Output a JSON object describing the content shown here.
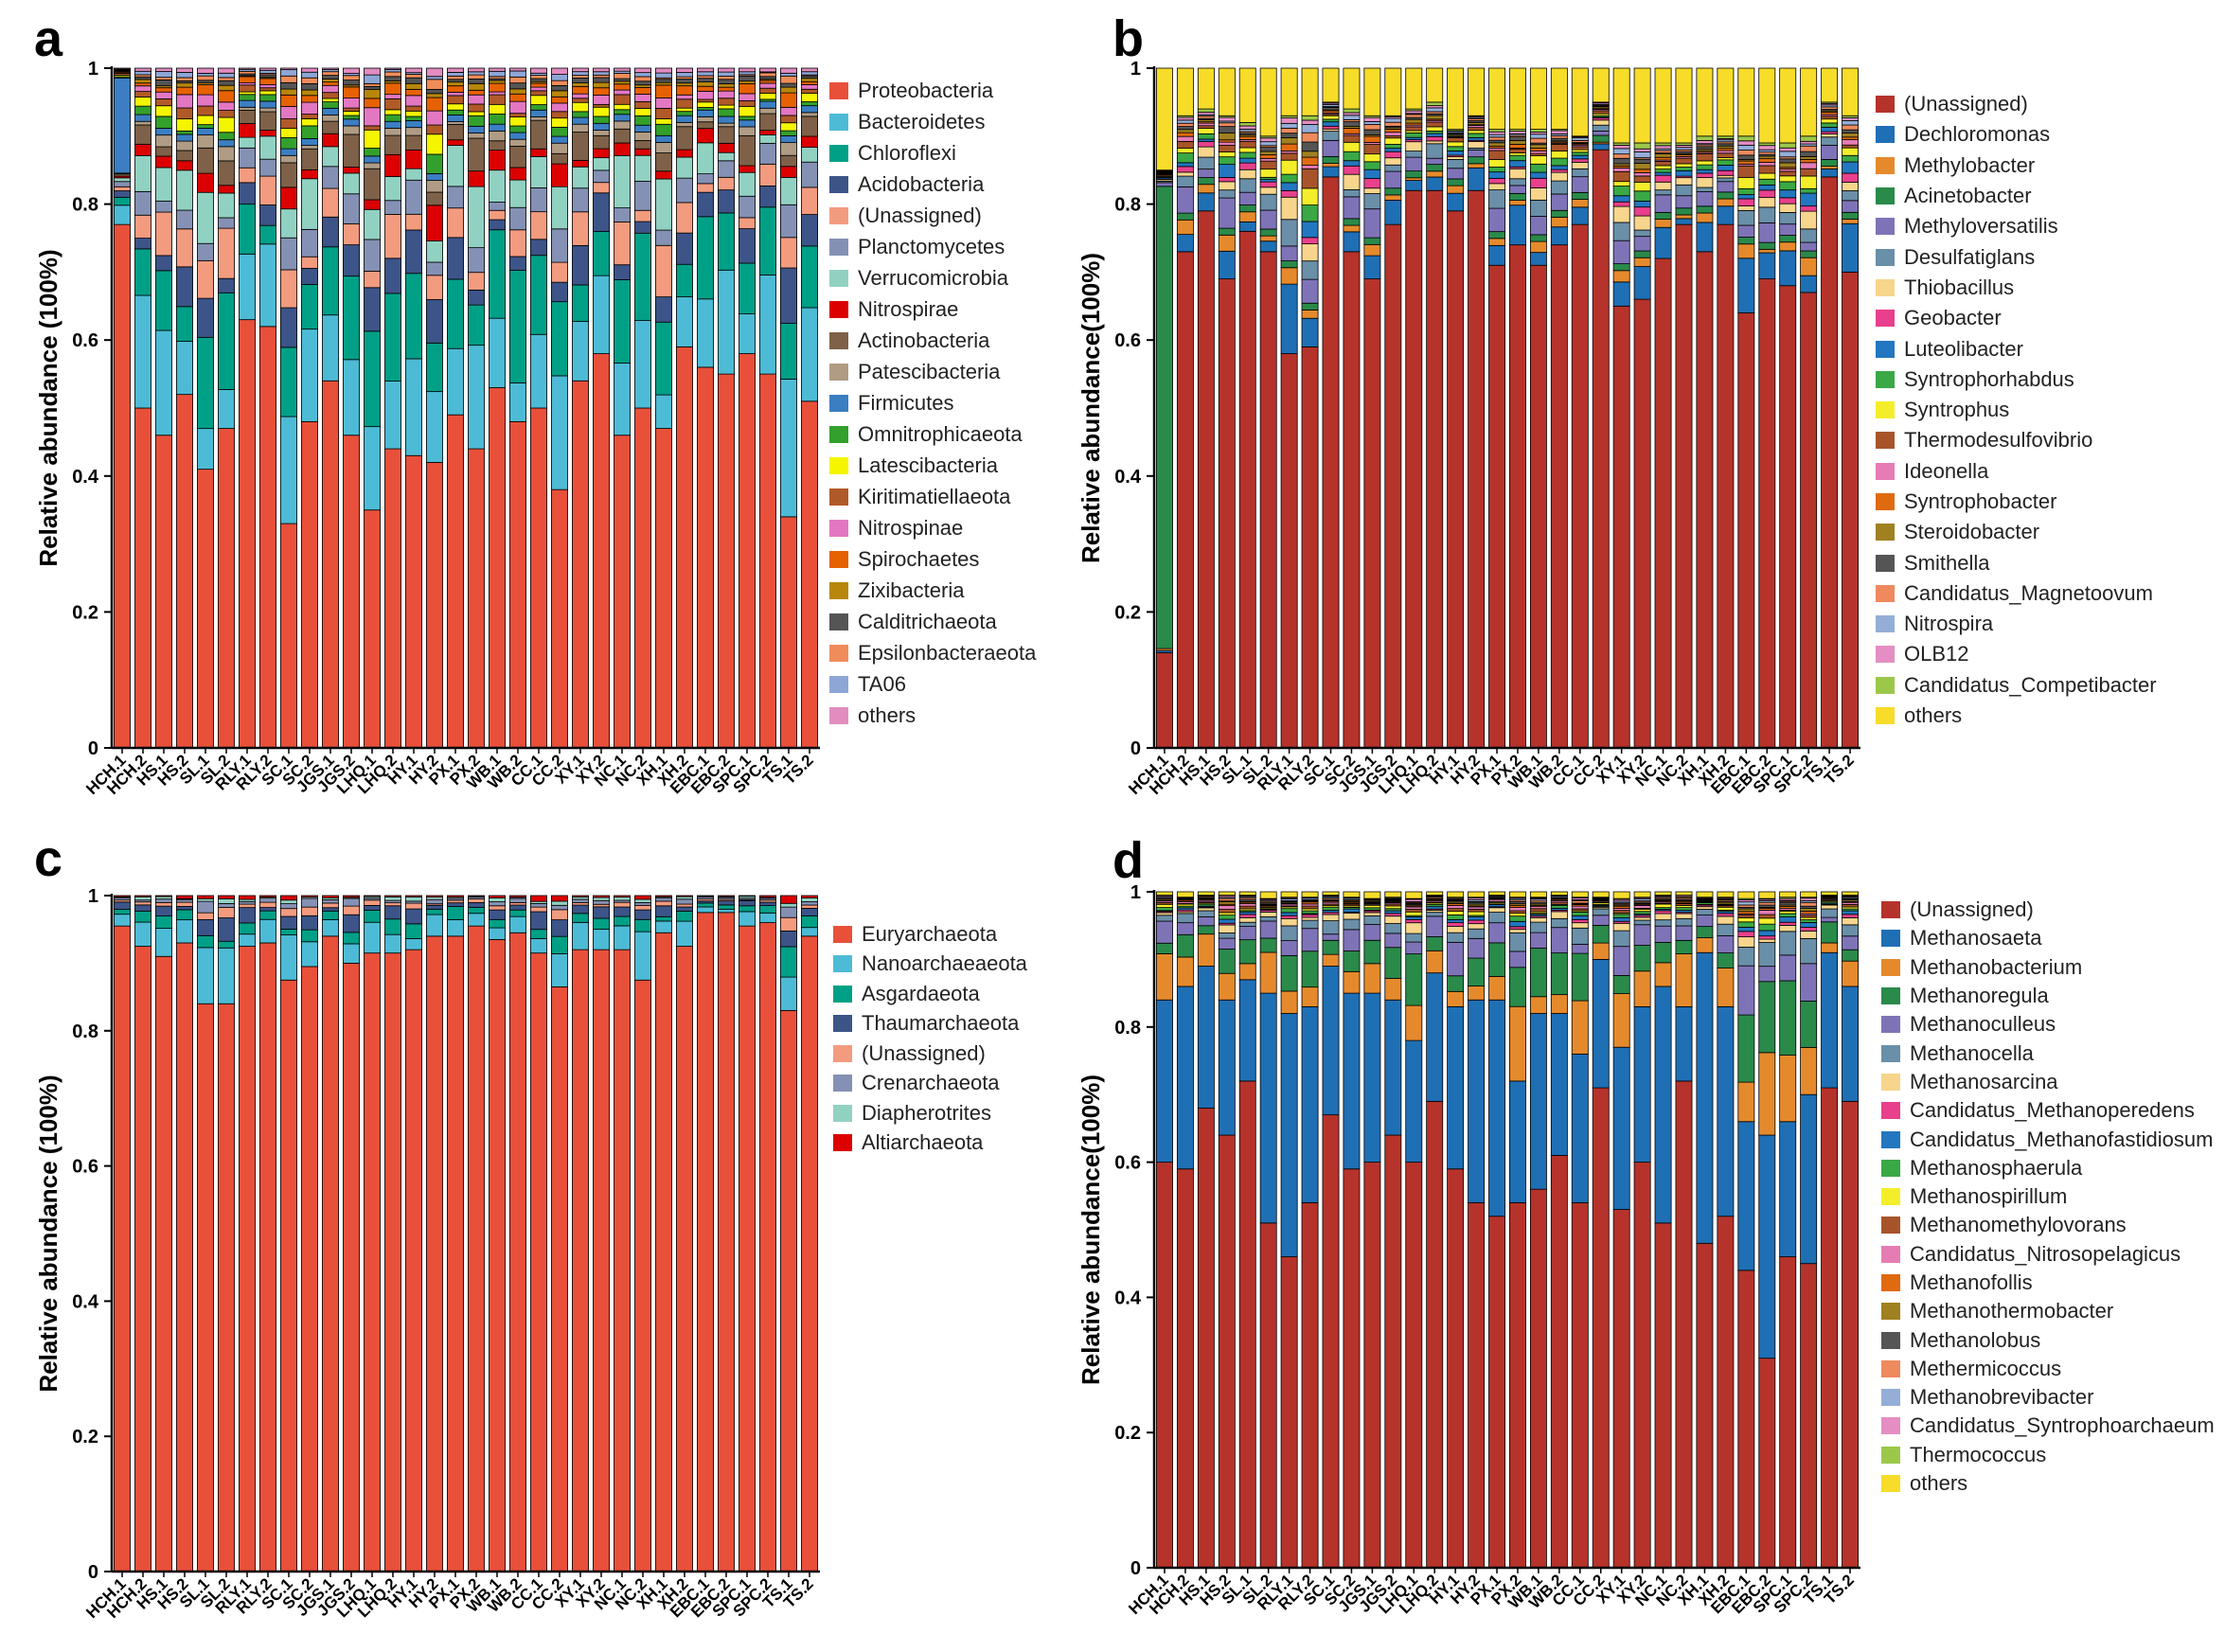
{
  "samples": [
    "HCH.1",
    "HCH.2",
    "HS.1",
    "HS.2",
    "SL.1",
    "SL.2",
    "RLY.1",
    "RLY.2",
    "SC.1",
    "SC.2",
    "JGS.1",
    "JGS.2",
    "LHQ.1",
    "LHQ.2",
    "HY.1",
    "HY.2",
    "PX.1",
    "PX.2",
    "WB.1",
    "WB.2",
    "CC.1",
    "CC.2",
    "XY.1",
    "XY.2",
    "NC.1",
    "NC.2",
    "XH.1",
    "XH.2",
    "EBC.1",
    "EBC.2",
    "SPC.1",
    "SPC.2",
    "TS.1",
    "TS.2"
  ],
  "yticks": [
    "0",
    "0.2",
    "0.4",
    "0.6",
    "0.8",
    "1"
  ],
  "chart_data": [
    {
      "panel": "a",
      "type": "bar",
      "stacked": true,
      "ylabel": "Relative abundance (100%)",
      "ylim": [
        0,
        1
      ],
      "legend_position": "right",
      "main": [
        0.77,
        0.5,
        0.46,
        0.52,
        0.41,
        0.47,
        0.63,
        0.62,
        0.33,
        0.48,
        0.54,
        0.46,
        0.35,
        0.44,
        0.43,
        0.42,
        0.49,
        0.44,
        0.53,
        0.48,
        0.5,
        0.38,
        0.54,
        0.58,
        0.46,
        0.5,
        0.47,
        0.59,
        0.56,
        0.55,
        0.58,
        0.55,
        0.34,
        0.51
      ],
      "top_class": [
        0.14,
        0.01,
        0.01,
        0.01,
        0.01,
        0.01,
        0.01,
        0.01,
        0.01,
        0.01,
        0.01,
        0.01,
        0.01,
        0.01,
        0.01,
        0.01,
        0.01,
        0.01,
        0.01,
        0.01,
        0.01,
        0.01,
        0.01,
        0.01,
        0.01,
        0.01,
        0.01,
        0.01,
        0.01,
        0.01,
        0.01,
        0.01,
        0.01,
        0.01
      ],
      "top_index": 10,
      "pattern": [
        0.12,
        0.1,
        0.04,
        0.04,
        0.03,
        0.04,
        0.02,
        0.03,
        0.01,
        0.01,
        0.01,
        0.01,
        0.01,
        0.01,
        0.005,
        0.005,
        0.005,
        0.005,
        0.005
      ],
      "series": [
        {
          "name": "Proteobacteria",
          "color": "#e8503a"
        },
        {
          "name": "Bacteroidetes",
          "color": "#4dbbd5"
        },
        {
          "name": "Chloroflexi",
          "color": "#00a087"
        },
        {
          "name": "Acidobacteria",
          "color": "#3c5488"
        },
        {
          "name": "(Unassigned)",
          "color": "#f39b7f"
        },
        {
          "name": "Planctomycetes",
          "color": "#8491b4"
        },
        {
          "name": "Verrucomicrobia",
          "color": "#91d1c2"
        },
        {
          "name": "Nitrospirae",
          "color": "#dc0000"
        },
        {
          "name": "Actinobacteria",
          "color": "#7e6148"
        },
        {
          "name": "Patescibacteria",
          "color": "#b09c85"
        },
        {
          "name": "Firmicutes",
          "color": "#3b7ec1"
        },
        {
          "name": "Omnitrophicaeota",
          "color": "#33a02c"
        },
        {
          "name": "Latescibacteria",
          "color": "#f5f500"
        },
        {
          "name": "Kiritimatiellaeota",
          "color": "#b15928"
        },
        {
          "name": "Nitrospinae",
          "color": "#e377c2"
        },
        {
          "name": "Spirochaetes",
          "color": "#e66101"
        },
        {
          "name": "Zixibacteria",
          "color": "#b8860b"
        },
        {
          "name": "Calditrichaeota",
          "color": "#555555"
        },
        {
          "name": "Epsilonbacteraeota",
          "color": "#f08c5a"
        },
        {
          "name": "TA06",
          "color": "#8ea6d6"
        },
        {
          "name": "others",
          "color": "#e28cc0"
        }
      ]
    },
    {
      "panel": "b",
      "type": "bar",
      "stacked": true,
      "ylabel": "Relative abundance(100%)",
      "ylim": [
        0,
        1
      ],
      "legend_position": "right",
      "main": [
        0.14,
        0.73,
        0.79,
        0.69,
        0.76,
        0.73,
        0.58,
        0.59,
        0.84,
        0.73,
        0.69,
        0.77,
        0.82,
        0.82,
        0.79,
        0.82,
        0.71,
        0.74,
        0.71,
        0.74,
        0.77,
        0.88,
        0.65,
        0.66,
        0.72,
        0.77,
        0.73,
        0.77,
        0.64,
        0.69,
        0.68,
        0.67,
        0.84,
        0.7
      ],
      "top_class": [
        0.68,
        0.01,
        0.01,
        0.01,
        0.01,
        0.01,
        0.01,
        0.01,
        0.01,
        0.01,
        0.01,
        0.01,
        0.01,
        0.01,
        0.01,
        0.01,
        0.01,
        0.01,
        0.01,
        0.01,
        0.01,
        0.01,
        0.01,
        0.01,
        0.01,
        0.01,
        0.01,
        0.01,
        0.01,
        0.01,
        0.01,
        0.01,
        0.01,
        0.01
      ],
      "top_index": 3,
      "others": [
        0.15,
        0.07,
        0.06,
        0.07,
        0.08,
        0.1,
        0.07,
        0.07,
        0.05,
        0.06,
        0.07,
        0.07,
        0.06,
        0.05,
        0.09,
        0.07,
        0.09,
        0.09,
        0.09,
        0.09,
        0.1,
        0.05,
        0.11,
        0.11,
        0.11,
        0.11,
        0.1,
        0.1,
        0.1,
        0.11,
        0.11,
        0.1,
        0.05,
        0.07
      ],
      "pattern": [
        0.05,
        0.015,
        0.03,
        0.02,
        0.015,
        0.01,
        0.01,
        0.01,
        0.01,
        0.01,
        0.005,
        0.005,
        0.005,
        0.005,
        0.005,
        0.005,
        0.005,
        0.005
      ],
      "series": [
        {
          "name": "(Unassigned)",
          "color": "#b5332a"
        },
        {
          "name": "Dechloromonas",
          "color": "#1f6fb5"
        },
        {
          "name": "Methylobacter",
          "color": "#e58a2c"
        },
        {
          "name": "Acinetobacter",
          "color": "#2a8a4a"
        },
        {
          "name": "Methyloversatilis",
          "color": "#7f73b8"
        },
        {
          "name": "Desulfatiglans",
          "color": "#6a8fa8"
        },
        {
          "name": "Thiobacillus",
          "color": "#f7d58c"
        },
        {
          "name": "Geobacter",
          "color": "#e8408c"
        },
        {
          "name": "Luteolibacter",
          "color": "#2277c0"
        },
        {
          "name": "Syntrophorhabdus",
          "color": "#3aa845"
        },
        {
          "name": "Syntrophus",
          "color": "#f4ee2a"
        },
        {
          "name": "Thermodesulfovibrio",
          "color": "#a8542a"
        },
        {
          "name": "Ideonella",
          "color": "#e67cb4"
        },
        {
          "name": "Syntrophobacter",
          "color": "#e06a10"
        },
        {
          "name": "Steroidobacter",
          "color": "#a08020"
        },
        {
          "name": "Smithella",
          "color": "#555555"
        },
        {
          "name": "Candidatus_Magnetoovum",
          "color": "#ee8a5e"
        },
        {
          "name": "Nitrospira",
          "color": "#94aed8"
        },
        {
          "name": "OLB12",
          "color": "#e48ec4"
        },
        {
          "name": "Candidatus_Competibacter",
          "color": "#9cc84a"
        },
        {
          "name": "others",
          "color": "#f7dc2a"
        }
      ]
    },
    {
      "panel": "c",
      "type": "bar",
      "stacked": true,
      "ylabel": "Relative abundance (100%)",
      "ylim": [
        0,
        1
      ],
      "legend_position": "right",
      "main": [
        0.955,
        0.925,
        0.91,
        0.93,
        0.84,
        0.84,
        0.925,
        0.93,
        0.875,
        0.895,
        0.94,
        0.9,
        0.915,
        0.915,
        0.92,
        0.94,
        0.94,
        0.955,
        0.935,
        0.945,
        0.915,
        0.865,
        0.92,
        0.92,
        0.92,
        0.875,
        0.945,
        0.925,
        0.975,
        0.975,
        0.955,
        0.96,
        0.83,
        0.94
      ],
      "pattern": [
        0.045,
        0.02,
        0.02,
        0.01,
        0.01,
        0.005,
        0.005
      ],
      "series": [
        {
          "name": "Euryarchaeota",
          "color": "#e8503a"
        },
        {
          "name": "Nanoarchaeaeota",
          "color": "#4dbbd5"
        },
        {
          "name": "Asgardaeota",
          "color": "#00a087"
        },
        {
          "name": "Thaumarchaeota",
          "color": "#3c5488"
        },
        {
          "name": "(Unassigned)",
          "color": "#f39b7f"
        },
        {
          "name": "Crenarchaeota",
          "color": "#8491b4"
        },
        {
          "name": "Diapherotrites",
          "color": "#91d1c2"
        },
        {
          "name": "Altiarchaeota",
          "color": "#dc0000"
        }
      ]
    },
    {
      "panel": "d",
      "type": "bar",
      "stacked": true,
      "ylabel": "Relative abundance(100%)",
      "ylim": [
        0,
        1
      ],
      "legend_position": "right",
      "main": [
        0.6,
        0.59,
        0.68,
        0.64,
        0.72,
        0.51,
        0.46,
        0.54,
        0.67,
        0.59,
        0.6,
        0.64,
        0.6,
        0.69,
        0.59,
        0.54,
        0.52,
        0.54,
        0.56,
        0.61,
        0.54,
        0.71,
        0.53,
        0.6,
        0.51,
        0.72,
        0.48,
        0.52,
        0.44,
        0.31,
        0.46,
        0.45,
        0.71,
        0.69
      ],
      "second": [
        0.24,
        0.27,
        0.21,
        0.2,
        0.15,
        0.34,
        0.36,
        0.29,
        0.22,
        0.26,
        0.25,
        0.2,
        0.18,
        0.19,
        0.24,
        0.3,
        0.32,
        0.18,
        0.26,
        0.21,
        0.22,
        0.19,
        0.24,
        0.23,
        0.35,
        0.11,
        0.43,
        0.31,
        0.22,
        0.33,
        0.2,
        0.25,
        0.2,
        0.17
      ],
      "others": [
        0.005,
        0.008,
        0.005,
        0.005,
        0.005,
        0.01,
        0.008,
        0.008,
        0.005,
        0.008,
        0.01,
        0.008,
        0.01,
        0.005,
        0.008,
        0.008,
        0.005,
        0.008,
        0.008,
        0.005,
        0.008,
        0.008,
        0.01,
        0.008,
        0.005,
        0.005,
        0.008,
        0.008,
        0.01,
        0.01,
        0.008,
        0.008,
        0.005,
        0.005
      ],
      "pattern": [
        0.3,
        0.25,
        0.15,
        0.08,
        0.04,
        0.02,
        0.02,
        0.02,
        0.02,
        0.015,
        0.015,
        0.01,
        0.01,
        0.01,
        0.01,
        0.01,
        0.01,
        0.005
      ],
      "series": [
        {
          "name": "(Unassigned)",
          "color": "#b5332a"
        },
        {
          "name": "Methanosaeta",
          "color": "#1f6fb5"
        },
        {
          "name": "Methanobacterium",
          "color": "#e58a2c"
        },
        {
          "name": "Methanoregula",
          "color": "#2a8a4a"
        },
        {
          "name": "Methanoculleus",
          "color": "#7f73b8"
        },
        {
          "name": "Methanocella",
          "color": "#6a8fa8"
        },
        {
          "name": "Methanosarcina",
          "color": "#f7d58c"
        },
        {
          "name": "Candidatus_Methanoperedens",
          "color": "#e8408c"
        },
        {
          "name": "Candidatus_Methanofastidiosum",
          "color": "#2277c0"
        },
        {
          "name": "Methanosphaerula",
          "color": "#3aa845"
        },
        {
          "name": "Methanospirillum",
          "color": "#f4ee2a"
        },
        {
          "name": "Methanomethylovorans",
          "color": "#a8542a"
        },
        {
          "name": "Candidatus_Nitrosopelagicus",
          "color": "#e67cb4"
        },
        {
          "name": "Methanofollis",
          "color": "#e06a10"
        },
        {
          "name": "Methanothermobacter",
          "color": "#a08020"
        },
        {
          "name": "Methanolobus",
          "color": "#555555"
        },
        {
          "name": "Methermicoccus",
          "color": "#ee8a5e"
        },
        {
          "name": "Methanobrevibacter",
          "color": "#94aed8"
        },
        {
          "name": "Candidatus_Syntrophoarchaeum",
          "color": "#e48ec4"
        },
        {
          "name": "Thermococcus",
          "color": "#9cc84a"
        },
        {
          "name": "others",
          "color": "#f7dc2a"
        }
      ]
    }
  ]
}
